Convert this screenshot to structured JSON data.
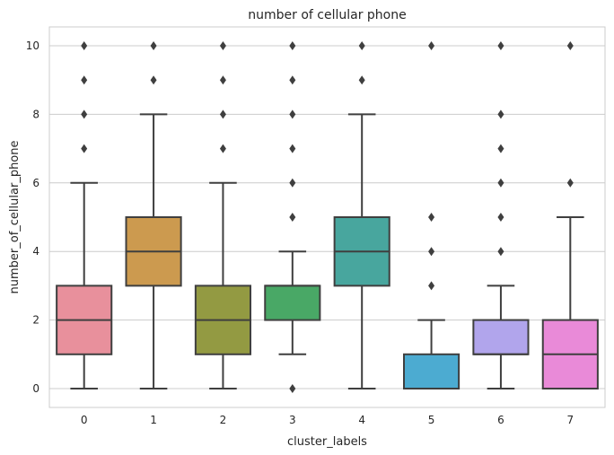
{
  "chart_data": {
    "type": "box",
    "title": "number of cellular phone",
    "xlabel": "cluster_labels",
    "ylabel": "number_of_cellular_phone",
    "ylim": [
      -0.55,
      10.55
    ],
    "yticks": [
      0,
      2,
      4,
      6,
      8,
      10
    ],
    "grid": true,
    "categories": [
      "0",
      "1",
      "2",
      "3",
      "4",
      "5",
      "6",
      "7"
    ],
    "boxes": [
      {
        "label": "0",
        "color": "#e8909c",
        "whisker_low": 0,
        "q1": 1,
        "median": 2,
        "q3": 3,
        "whisker_high": 6,
        "outliers": [
          7,
          8,
          9,
          10
        ]
      },
      {
        "label": "1",
        "color": "#cc9a4f",
        "whisker_low": 0,
        "q1": 3,
        "median": 4,
        "q3": 5,
        "whisker_high": 8,
        "outliers": [
          9,
          10
        ]
      },
      {
        "label": "2",
        "color": "#939a42",
        "whisker_low": 0,
        "q1": 1,
        "median": 2,
        "q3": 3,
        "whisker_high": 6,
        "outliers": [
          7,
          8,
          9,
          10
        ]
      },
      {
        "label": "3",
        "color": "#49a866",
        "whisker_low": 1,
        "q1": 2,
        "median": 3,
        "q3": 3,
        "whisker_high": 4,
        "outliers": [
          0,
          5,
          6,
          7,
          8,
          9,
          10
        ]
      },
      {
        "label": "4",
        "color": "#48a69e",
        "whisker_low": 0,
        "q1": 3,
        "median": 4,
        "q3": 5,
        "whisker_high": 8,
        "outliers": [
          9,
          10
        ]
      },
      {
        "label": "5",
        "color": "#4cabd1",
        "whisker_low": 0,
        "q1": 0,
        "median": 0,
        "q3": 1,
        "whisker_high": 2,
        "outliers": [
          3,
          4,
          5,
          10
        ]
      },
      {
        "label": "6",
        "color": "#b1a5ec",
        "whisker_low": 0,
        "q1": 1,
        "median": 1,
        "q3": 2,
        "whisker_high": 3,
        "outliers": [
          4,
          5,
          6,
          7,
          8,
          10
        ]
      },
      {
        "label": "7",
        "color": "#e98ad8",
        "whisker_low": 0,
        "q1": 0,
        "median": 1,
        "q3": 2,
        "whisker_high": 5,
        "outliers": [
          6,
          10
        ]
      }
    ]
  }
}
